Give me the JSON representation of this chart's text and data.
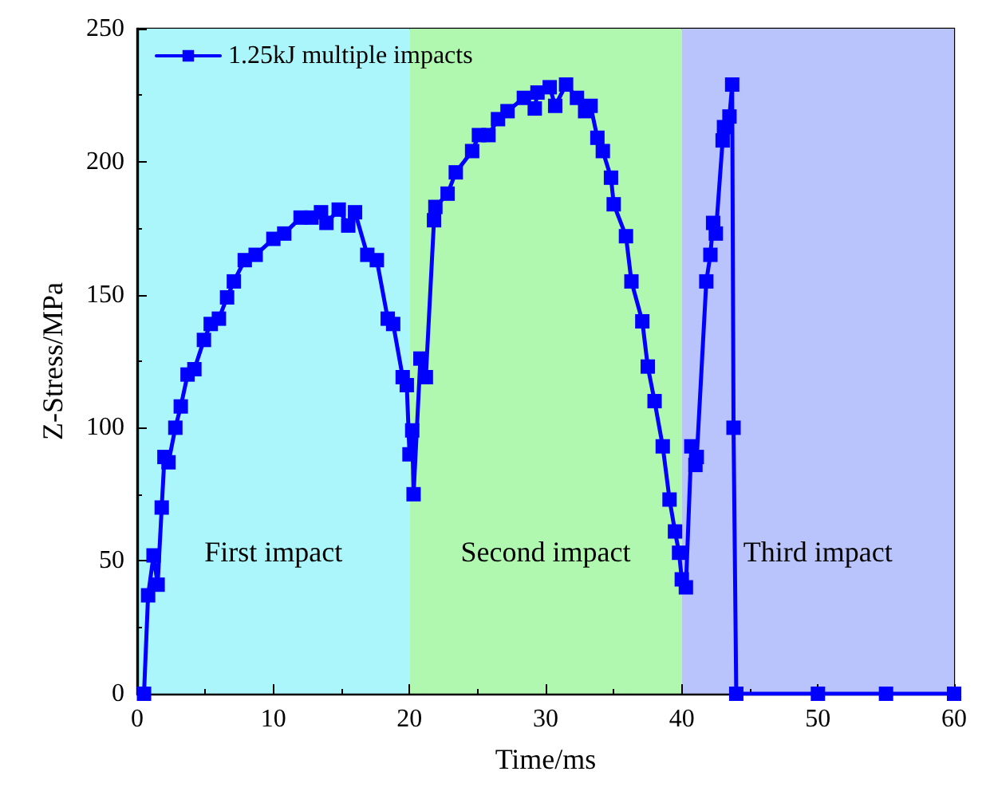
{
  "chart_data": {
    "type": "line",
    "xlabel": "Time/ms",
    "ylabel": "Z-Stress/MPa",
    "xlim": [
      0,
      60
    ],
    "xticks": [
      0,
      10,
      20,
      30,
      40,
      50,
      60
    ],
    "ylim": [
      0,
      250
    ],
    "yticks": [
      0,
      50,
      100,
      150,
      200,
      250
    ],
    "grid": false,
    "legend": "top left",
    "marker": "square",
    "line_style": "solid",
    "bands": [
      {
        "axis": "x",
        "from": 0,
        "to": 20,
        "label": "First impact",
        "color": "#aaf6fb"
      },
      {
        "axis": "x",
        "from": 20,
        "to": 40,
        "label": "Second impact",
        "color": "#b0f7b0"
      },
      {
        "axis": "x",
        "from": 40,
        "to": 60,
        "label": "Third impact",
        "color": "#b8c4fb"
      }
    ],
    "series": [
      {
        "name": "1.25kJ multiple impacts",
        "color": "#0000ff",
        "x": [
          0.5,
          0.8,
          1.2,
          1.5,
          1.8,
          2,
          2.3,
          2.8,
          3.2,
          3.7,
          4.2,
          4.9,
          5.4,
          6,
          6.6,
          7.1,
          7.9,
          8.7,
          10,
          10.8,
          12,
          12.8,
          13.5,
          13.9,
          14.8,
          15.5,
          16,
          16.9,
          17.6,
          18.4,
          18.8,
          19.5,
          19.8,
          20,
          20.2,
          20.3,
          20.8,
          21.2,
          21.8,
          21.9,
          22.8,
          23.4,
          24.6,
          25.1,
          25.8,
          26.5,
          27.2,
          28.4,
          29.2,
          29.4,
          30.3,
          30.7,
          31.5,
          32.3,
          32.9,
          33.3,
          33.8,
          34.2,
          34.8,
          35,
          35.9,
          36.3,
          37.1,
          37.5,
          38,
          38.6,
          39.1,
          39.5,
          39.8,
          40,
          40.3,
          40.7,
          41,
          41.1,
          41.8,
          42.1,
          42.3,
          42.5,
          43,
          43.1,
          43.5,
          43.7,
          43.8,
          44,
          50,
          55,
          60
        ],
        "values": [
          0,
          37,
          52,
          41,
          70,
          89,
          87,
          100,
          108,
          120,
          122,
          133,
          139,
          141,
          149,
          155,
          163,
          165,
          171,
          173,
          179,
          179,
          181,
          177,
          182,
          176,
          181,
          165,
          163,
          141,
          139,
          119,
          116,
          90,
          99,
          75,
          126,
          119,
          178,
          183,
          188,
          196,
          204,
          210,
          210,
          216,
          219,
          224,
          220,
          226,
          228,
          221,
          229,
          224,
          219,
          221,
          209,
          204,
          194,
          184,
          172,
          155,
          140,
          123,
          110,
          93,
          73,
          61,
          53,
          43,
          40,
          93,
          86,
          89,
          155,
          165,
          177,
          173,
          208,
          213,
          217,
          229,
          100,
          0,
          0,
          0,
          0
        ]
      }
    ]
  }
}
